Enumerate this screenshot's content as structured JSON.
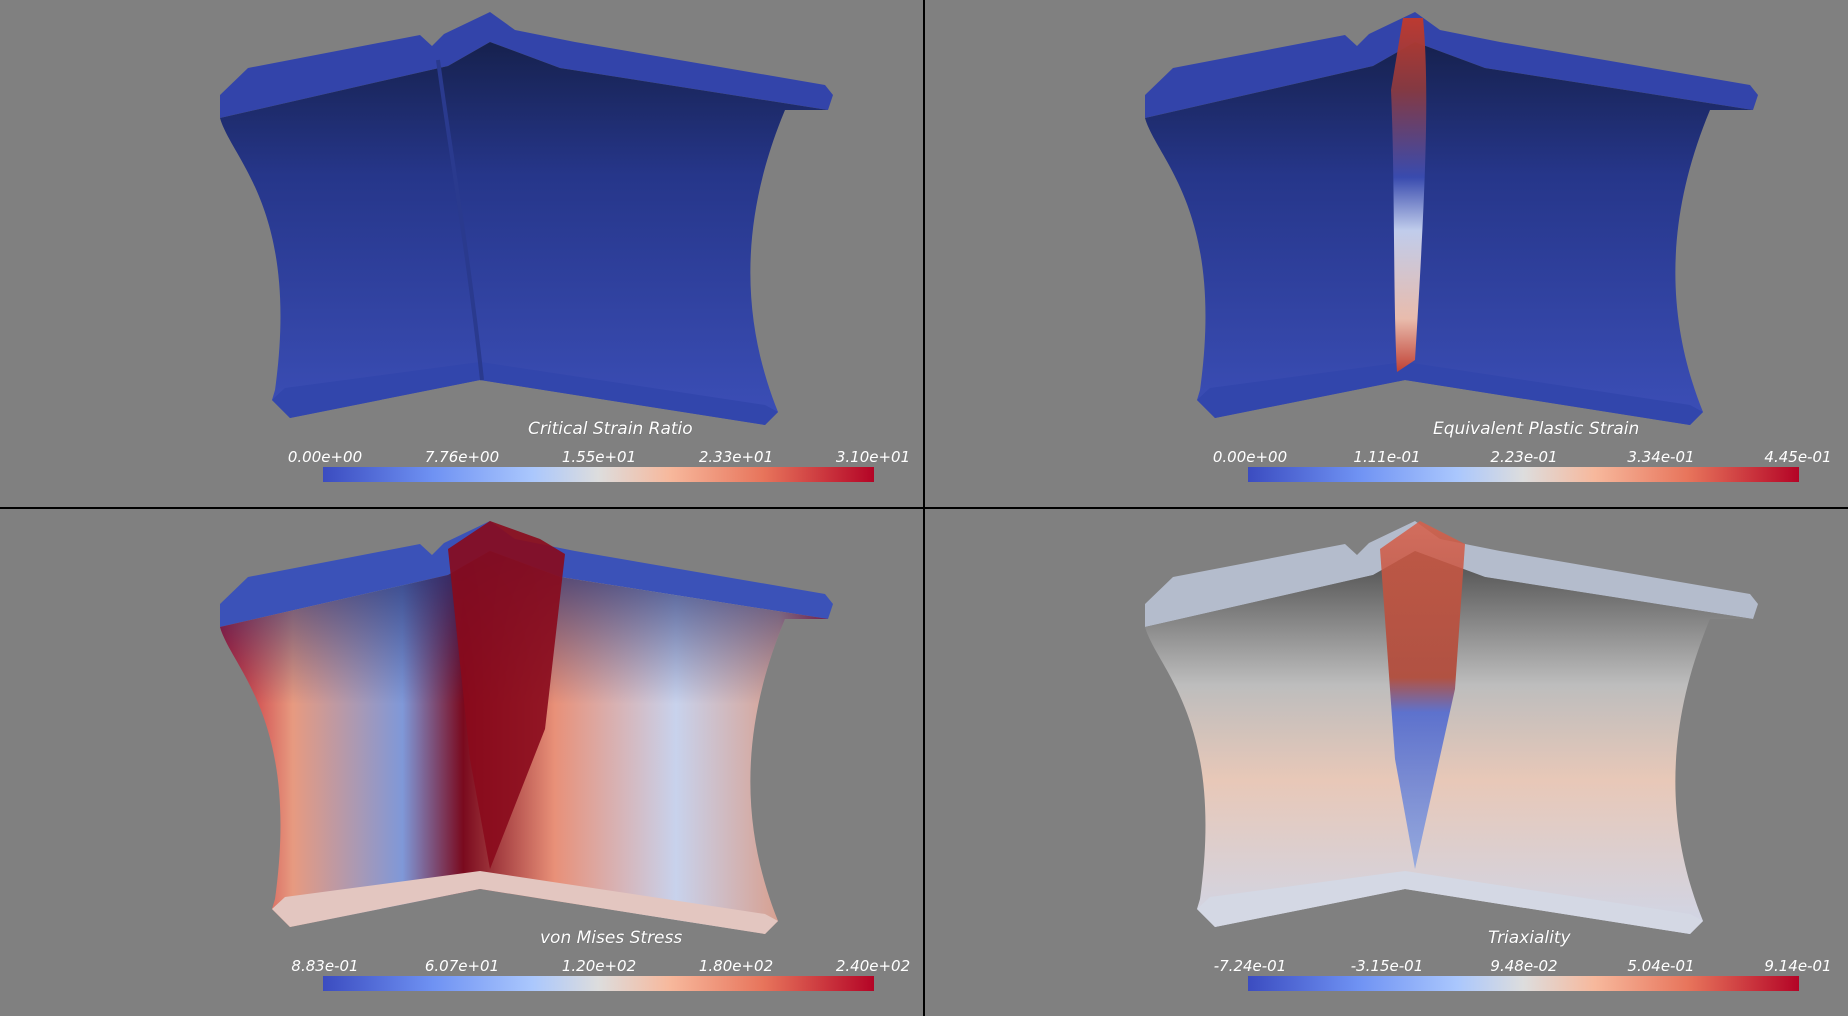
{
  "panels": [
    {
      "id": "critical-strain-ratio",
      "title": "Critical Strain Ratio",
      "ticks": [
        "0.00e+00",
        "7.76e+00",
        "1.55e+01",
        "2.33e+01",
        "3.10e+01"
      ]
    },
    {
      "id": "equivalent-plastic-strain",
      "title": "Equivalent Plastic Strain",
      "ticks": [
        "0.00e+00",
        "1.11e-01",
        "2.23e-01",
        "3.34e-01",
        "4.45e-01"
      ]
    },
    {
      "id": "von-mises-stress",
      "title": "von Mises Stress",
      "ticks": [
        "8.83e-01",
        "6.07e+01",
        "1.20e+02",
        "1.80e+02",
        "2.40e+02"
      ]
    },
    {
      "id": "triaxiality",
      "title": "Triaxiality",
      "ticks": [
        "-7.24e-01",
        "-3.15e-01",
        "9.48e-02",
        "5.04e-01",
        "9.14e-01"
      ]
    }
  ],
  "colormap": {
    "name": "Cool to Warm",
    "low": "#3b4cc0",
    "mid": "#dddddd",
    "high": "#b40426"
  },
  "background_color": "#808080"
}
